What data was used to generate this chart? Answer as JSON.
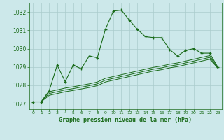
{
  "title": "Graphe pression niveau de la mer (hPa)",
  "bg_color": "#cce8ea",
  "grid_color": "#aacccc",
  "line_color": "#1a6b1a",
  "x_labels": [
    "0",
    "1",
    "2",
    "3",
    "4",
    "5",
    "6",
    "7",
    "8",
    "9",
    "10",
    "11",
    "12",
    "13",
    "14",
    "15",
    "16",
    "17",
    "18",
    "19",
    "20",
    "21",
    "22",
    "23"
  ],
  "ylim": [
    1026.7,
    1032.5
  ],
  "yticks": [
    1027,
    1028,
    1029,
    1030,
    1031,
    1032
  ],
  "main_series": [
    1027.1,
    1027.1,
    1027.7,
    1029.1,
    1028.2,
    1029.1,
    1028.9,
    1029.6,
    1029.5,
    1031.05,
    1032.05,
    1032.1,
    1031.55,
    1031.05,
    1030.65,
    1030.6,
    1030.6,
    1029.95,
    1029.6,
    1029.9,
    1030.0,
    1029.75,
    1029.75,
    1029.0
  ],
  "flat_series1": [
    1027.1,
    1027.1,
    1027.65,
    1027.75,
    1027.85,
    1027.92,
    1028.0,
    1028.08,
    1028.18,
    1028.38,
    1028.48,
    1028.58,
    1028.68,
    1028.78,
    1028.88,
    1028.98,
    1029.05,
    1029.15,
    1029.22,
    1029.32,
    1029.42,
    1029.52,
    1029.62,
    1028.95
  ],
  "flat_series2": [
    1027.1,
    1027.1,
    1027.55,
    1027.65,
    1027.75,
    1027.82,
    1027.9,
    1027.98,
    1028.08,
    1028.28,
    1028.38,
    1028.48,
    1028.58,
    1028.68,
    1028.78,
    1028.88,
    1028.95,
    1029.05,
    1029.12,
    1029.22,
    1029.32,
    1029.42,
    1029.52,
    1028.95
  ],
  "flat_series3": [
    1027.1,
    1027.1,
    1027.45,
    1027.55,
    1027.65,
    1027.72,
    1027.8,
    1027.88,
    1027.98,
    1028.18,
    1028.28,
    1028.38,
    1028.48,
    1028.58,
    1028.68,
    1028.78,
    1028.85,
    1028.95,
    1029.02,
    1029.12,
    1029.22,
    1029.32,
    1029.42,
    1028.95
  ]
}
